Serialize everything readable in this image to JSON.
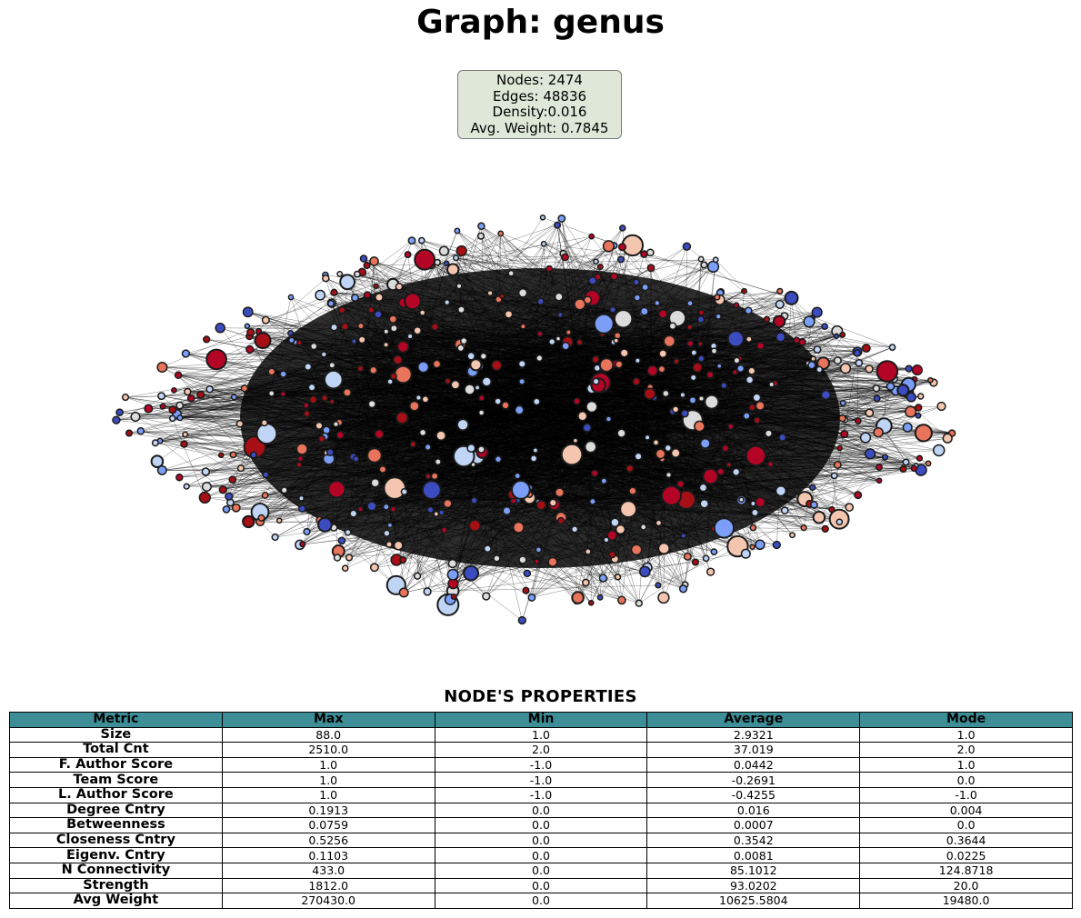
{
  "title": "Graph: genus",
  "stats": {
    "nodes": "Nodes: 2474",
    "edges": "Edges: 48836",
    "density": "Density:0.016",
    "avg_weight": "Avg. Weight: 0.7845"
  },
  "graph": {
    "node_colors": [
      "#b40426",
      "#3b4cc0",
      "#7b9ff9",
      "#c0d4f5",
      "#dddcdc",
      "#f4c6af",
      "#e7745b",
      "#a50f15"
    ],
    "edge_color": "#000000",
    "node_border_color": "#1a1a1a"
  },
  "table": {
    "title": "NODE'S PROPERTIES",
    "header_color": "#3e8e98",
    "columns": [
      "Metric",
      "Max",
      "Min",
      "Average",
      "Mode"
    ],
    "rows": [
      {
        "metric": "Size",
        "max": "88.0",
        "min": "1.0",
        "average": "2.9321",
        "mode": "1.0"
      },
      {
        "metric": "Total Cnt",
        "max": "2510.0",
        "min": "2.0",
        "average": "37.019",
        "mode": "2.0"
      },
      {
        "metric": "F. Author Score",
        "max": "1.0",
        "min": "-1.0",
        "average": "0.0442",
        "mode": "1.0"
      },
      {
        "metric": "Team Score",
        "max": "1.0",
        "min": "-1.0",
        "average": "-0.2691",
        "mode": "0.0"
      },
      {
        "metric": "L. Author Score",
        "max": "1.0",
        "min": "-1.0",
        "average": "-0.4255",
        "mode": "-1.0"
      },
      {
        "metric": "Degree Cntry",
        "max": "0.1913",
        "min": "0.0",
        "average": "0.016",
        "mode": "0.004"
      },
      {
        "metric": "Betweenness",
        "max": "0.0759",
        "min": "0.0",
        "average": "0.0007",
        "mode": "0.0"
      },
      {
        "metric": "Closeness Cntry",
        "max": "0.5256",
        "min": "0.0",
        "average": "0.3542",
        "mode": "0.3644"
      },
      {
        "metric": "Eigenv. Cntry",
        "max": "0.1103",
        "min": "0.0",
        "average": "0.0081",
        "mode": "0.0225"
      },
      {
        "metric": "N Connectivity",
        "max": "433.0",
        "min": "0.0",
        "average": "85.1012",
        "mode": "124.8718"
      },
      {
        "metric": "Strength",
        "max": "1812.0",
        "min": "0.0",
        "average": "93.0202",
        "mode": "20.0"
      },
      {
        "metric": "Avg Weight",
        "max": "270430.0",
        "min": "0.0",
        "average": "10625.5804",
        "mode": "19480.0"
      }
    ]
  }
}
